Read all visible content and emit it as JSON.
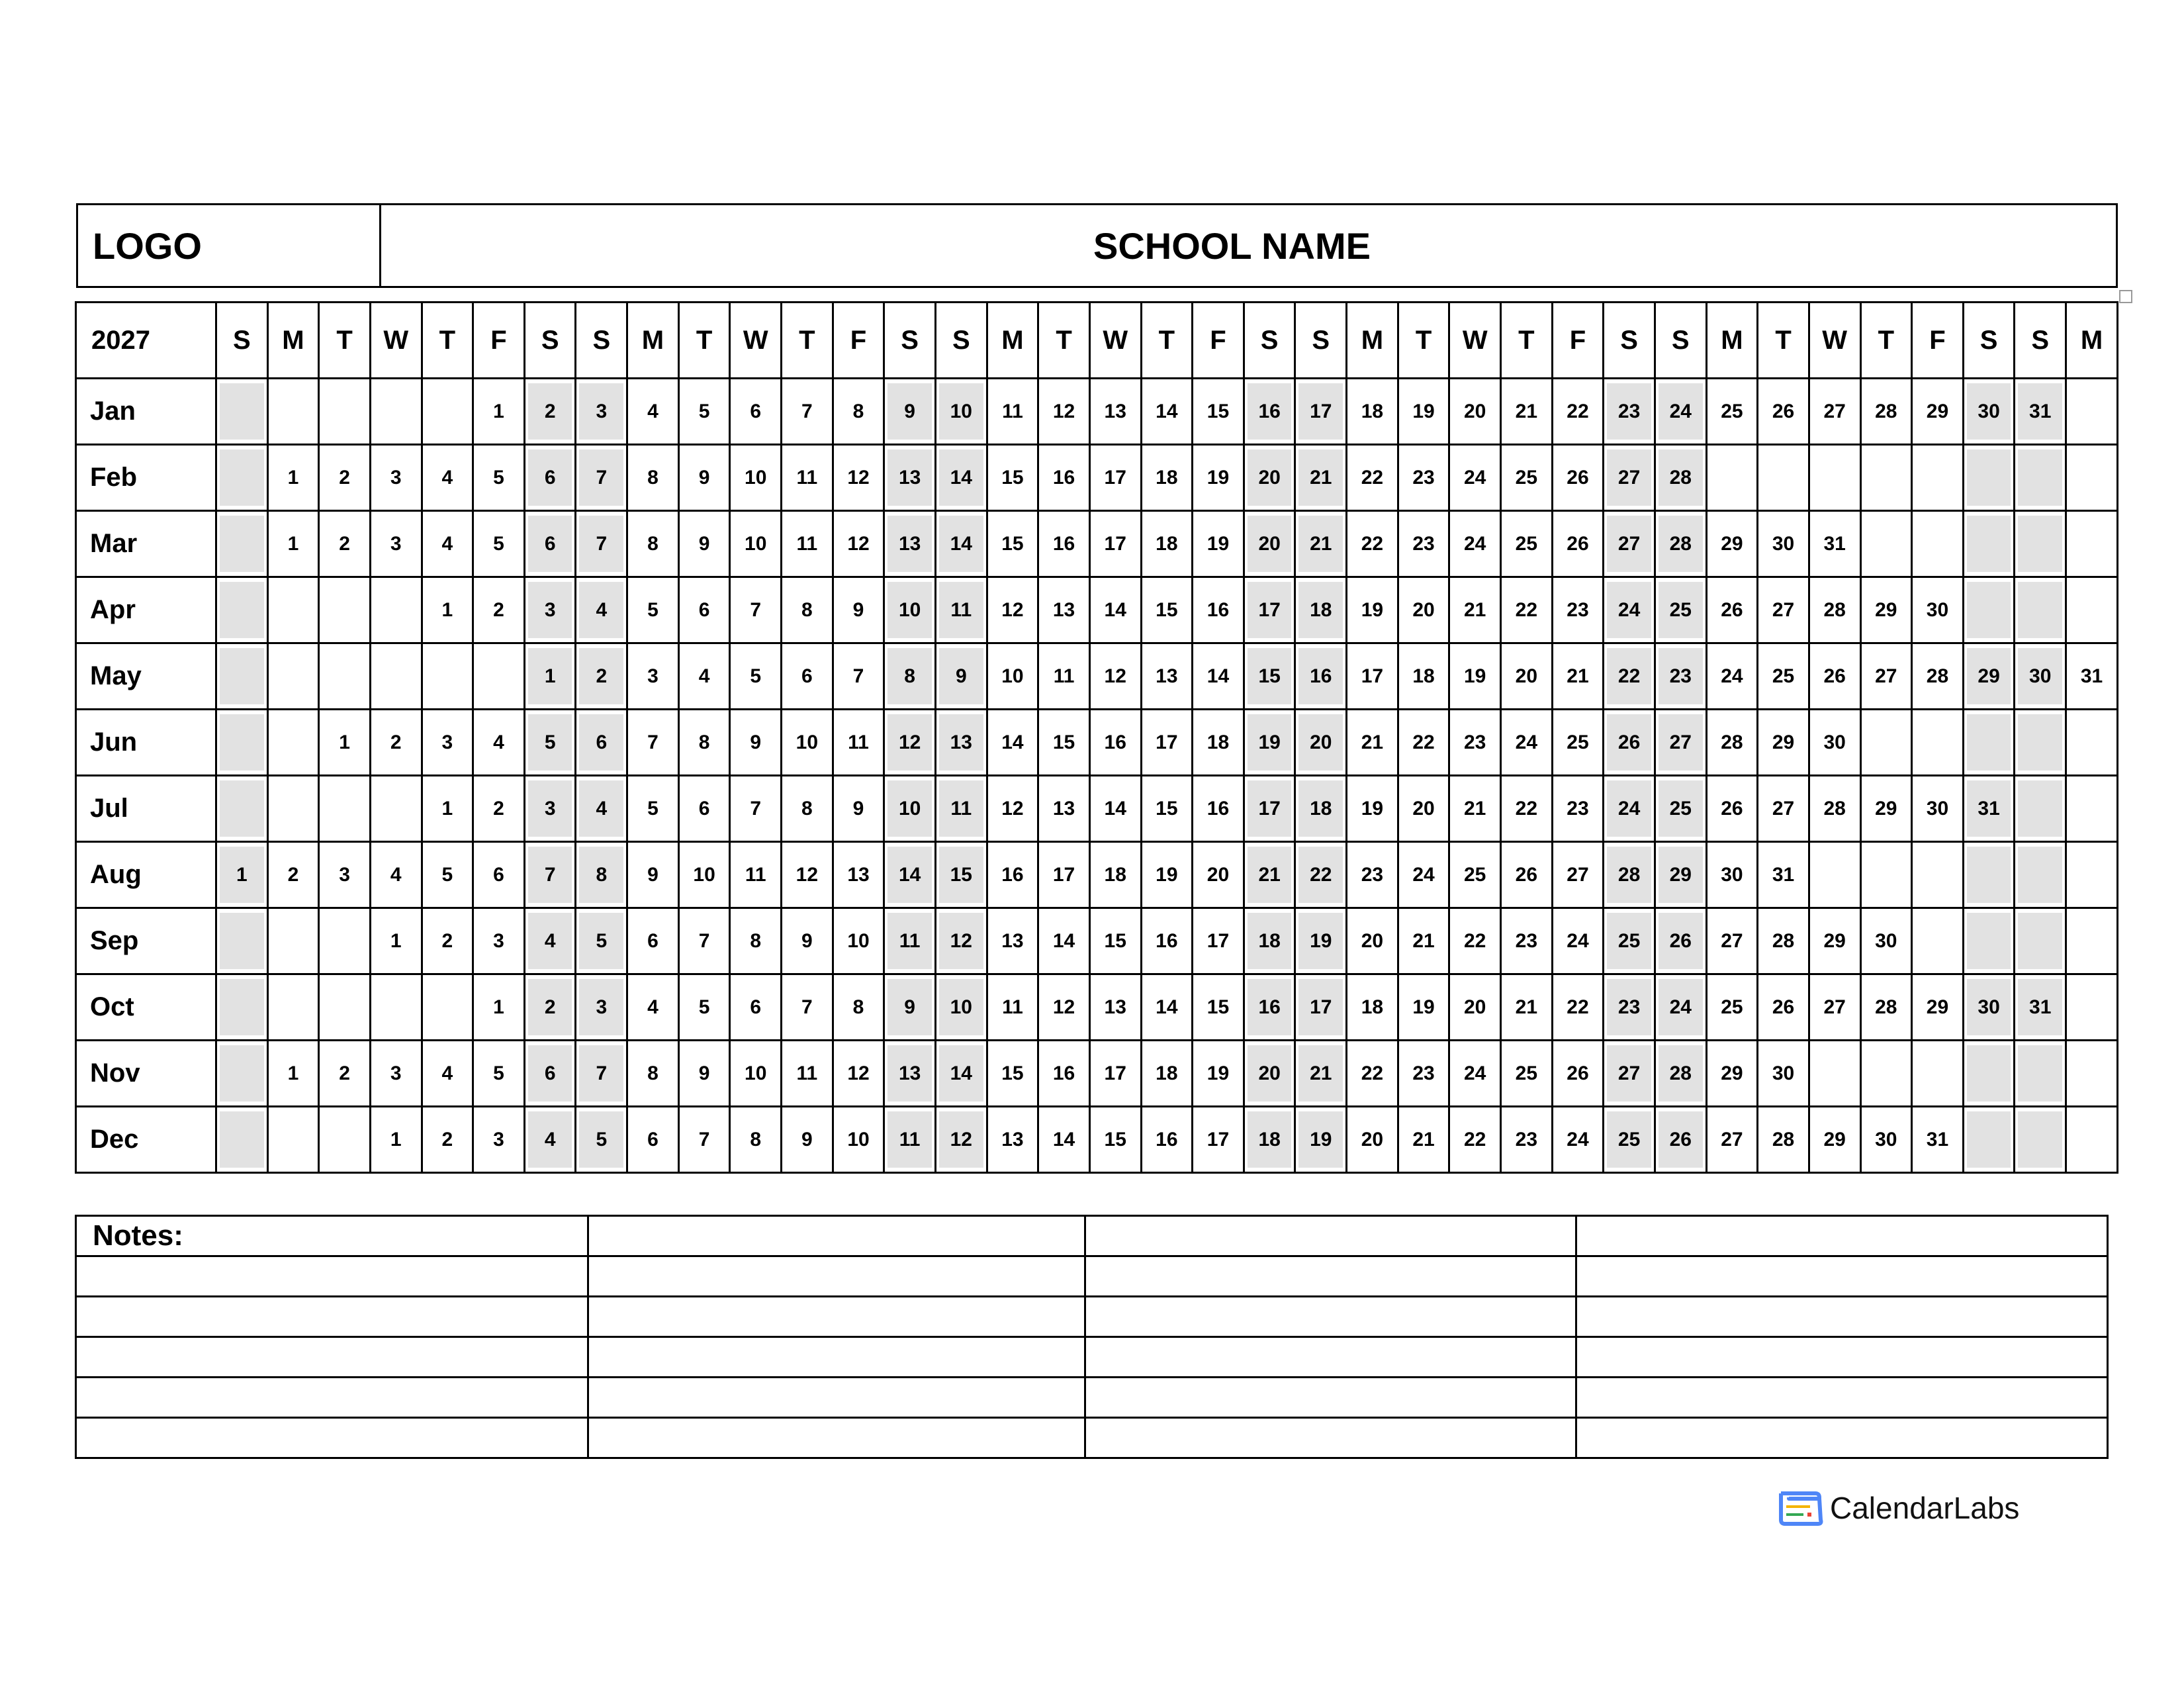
{
  "header": {
    "logo_placeholder": "LOGO",
    "school_name": "SCHOOL NAME"
  },
  "calendar": {
    "year": "2027",
    "weekend_shade": "#e2e2e2",
    "day_headers": [
      "S",
      "M",
      "T",
      "W",
      "T",
      "F",
      "S",
      "S",
      "M",
      "T",
      "W",
      "T",
      "F",
      "S",
      "S",
      "M",
      "T",
      "W",
      "T",
      "F",
      "S",
      "S",
      "M",
      "T",
      "W",
      "T",
      "F",
      "S",
      "S",
      "M",
      "T",
      "W",
      "T",
      "F",
      "S",
      "S",
      "M"
    ],
    "months": [
      {
        "name": "Jan",
        "cells": [
          "",
          "",
          "",
          "",
          "",
          1,
          2,
          3,
          4,
          5,
          6,
          7,
          8,
          9,
          10,
          11,
          12,
          13,
          14,
          15,
          16,
          17,
          18,
          19,
          20,
          21,
          22,
          23,
          24,
          25,
          26,
          27,
          28,
          29,
          30,
          31,
          ""
        ]
      },
      {
        "name": "Feb",
        "cells": [
          "",
          1,
          2,
          3,
          4,
          5,
          6,
          7,
          8,
          9,
          10,
          11,
          12,
          13,
          14,
          15,
          16,
          17,
          18,
          19,
          20,
          21,
          22,
          23,
          24,
          25,
          26,
          27,
          28,
          "",
          "",
          "",
          "",
          "",
          "",
          "",
          ""
        ]
      },
      {
        "name": "Mar",
        "cells": [
          "",
          1,
          2,
          3,
          4,
          5,
          6,
          7,
          8,
          9,
          10,
          11,
          12,
          13,
          14,
          15,
          16,
          17,
          18,
          19,
          20,
          21,
          22,
          23,
          24,
          25,
          26,
          27,
          28,
          29,
          30,
          31,
          "",
          "",
          "",
          "",
          ""
        ]
      },
      {
        "name": "Apr",
        "cells": [
          "",
          "",
          "",
          "",
          1,
          2,
          3,
          4,
          5,
          6,
          7,
          8,
          9,
          10,
          11,
          12,
          13,
          14,
          15,
          16,
          17,
          18,
          19,
          20,
          21,
          22,
          23,
          24,
          25,
          26,
          27,
          28,
          29,
          30,
          "",
          "",
          ""
        ]
      },
      {
        "name": "May",
        "cells": [
          "",
          "",
          "",
          "",
          "",
          "",
          1,
          2,
          3,
          4,
          5,
          6,
          7,
          8,
          9,
          10,
          11,
          12,
          13,
          14,
          15,
          16,
          17,
          18,
          19,
          20,
          21,
          22,
          23,
          24,
          25,
          26,
          27,
          28,
          29,
          30,
          31
        ]
      },
      {
        "name": "Jun",
        "cells": [
          "",
          "",
          1,
          2,
          3,
          4,
          5,
          6,
          7,
          8,
          9,
          10,
          11,
          12,
          13,
          14,
          15,
          16,
          17,
          18,
          19,
          20,
          21,
          22,
          23,
          24,
          25,
          26,
          27,
          28,
          29,
          30,
          "",
          "",
          "",
          "",
          ""
        ]
      },
      {
        "name": "Jul",
        "cells": [
          "",
          "",
          "",
          "",
          1,
          2,
          3,
          4,
          5,
          6,
          7,
          8,
          9,
          10,
          11,
          12,
          13,
          14,
          15,
          16,
          17,
          18,
          19,
          20,
          21,
          22,
          23,
          24,
          25,
          26,
          27,
          28,
          29,
          30,
          31,
          "",
          ""
        ]
      },
      {
        "name": "Aug",
        "cells": [
          1,
          2,
          3,
          4,
          5,
          6,
          7,
          8,
          9,
          10,
          11,
          12,
          13,
          14,
          15,
          16,
          17,
          18,
          19,
          20,
          21,
          22,
          23,
          24,
          25,
          26,
          27,
          28,
          29,
          30,
          31,
          "",
          "",
          "",
          "",
          "",
          ""
        ]
      },
      {
        "name": "Sep",
        "cells": [
          "",
          "",
          "",
          1,
          2,
          3,
          4,
          5,
          6,
          7,
          8,
          9,
          10,
          11,
          12,
          13,
          14,
          15,
          16,
          17,
          18,
          19,
          20,
          21,
          22,
          23,
          24,
          25,
          26,
          27,
          28,
          29,
          30,
          "",
          "",
          "",
          ""
        ]
      },
      {
        "name": "Oct",
        "cells": [
          "",
          "",
          "",
          "",
          "",
          1,
          2,
          3,
          4,
          5,
          6,
          7,
          8,
          9,
          10,
          11,
          12,
          13,
          14,
          15,
          16,
          17,
          18,
          19,
          20,
          21,
          22,
          23,
          24,
          25,
          26,
          27,
          28,
          29,
          30,
          31,
          ""
        ]
      },
      {
        "name": "Nov",
        "cells": [
          "",
          1,
          2,
          3,
          4,
          5,
          6,
          7,
          8,
          9,
          10,
          11,
          12,
          13,
          14,
          15,
          16,
          17,
          18,
          19,
          20,
          21,
          22,
          23,
          24,
          25,
          26,
          27,
          28,
          29,
          30,
          "",
          "",
          "",
          "",
          "",
          ""
        ]
      },
      {
        "name": "Dec",
        "cells": [
          "",
          "",
          "",
          1,
          2,
          3,
          4,
          5,
          6,
          7,
          8,
          9,
          10,
          11,
          12,
          13,
          14,
          15,
          16,
          17,
          18,
          19,
          20,
          21,
          22,
          23,
          24,
          25,
          26,
          27,
          28,
          29,
          30,
          31,
          "",
          "",
          ""
        ]
      }
    ]
  },
  "notes": {
    "label": "Notes:"
  },
  "brand": {
    "name": "CalendarLabs",
    "icon": "calendar-icon",
    "colors": {
      "blue": "#4f86f7",
      "yellow": "#f4b400",
      "green": "#34a853",
      "red": "#ea4335"
    }
  }
}
